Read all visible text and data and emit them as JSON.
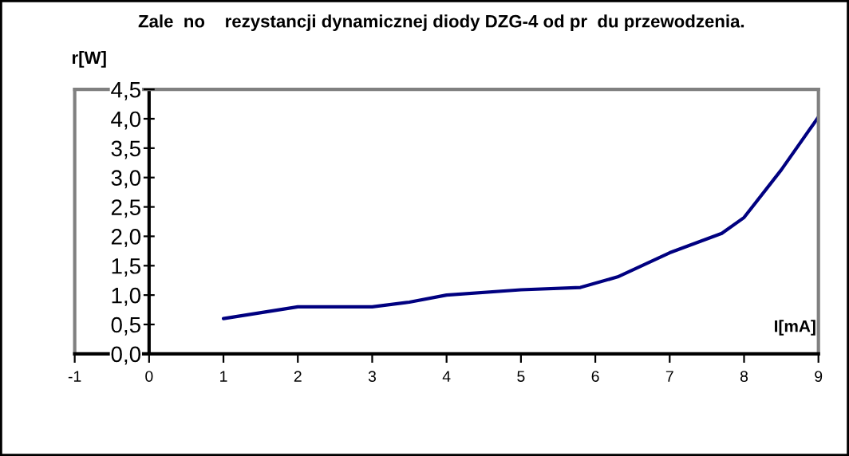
{
  "chart_data": {
    "type": "line",
    "title": "Zale  no    rezystancji dynamicznej diody DZG-4 od pr  du przewodzenia.",
    "ylabel": "r[W]",
    "xlabel": "I[mA]",
    "series": [
      {
        "color": "#000080",
        "x": [
          1,
          2,
          3,
          3.5,
          4,
          5,
          5.8,
          6.3,
          7,
          7.7,
          8,
          8.5,
          9
        ],
        "values": [
          0.6,
          0.8,
          0.8,
          0.88,
          1.0,
          1.09,
          1.13,
          1.31,
          1.72,
          2.05,
          2.32,
          3.13,
          4.03
        ]
      }
    ],
    "xlim": [
      -1,
      9
    ],
    "xticks": [
      -1,
      0,
      1,
      2,
      3,
      4,
      5,
      6,
      7,
      8,
      9
    ],
    "ylim": [
      0,
      4.5
    ],
    "yticks": [
      {
        "value": 0,
        "label": "0,0"
      },
      {
        "value": 0.5,
        "label": "0,5"
      },
      {
        "value": 1,
        "label": "1,0"
      },
      {
        "value": 1.5,
        "label": "1,5"
      },
      {
        "value": 2,
        "label": "2,0"
      },
      {
        "value": 2.5,
        "label": "2,5"
      },
      {
        "value": 3,
        "label": "3,0"
      },
      {
        "value": 3.5,
        "label": "3,5"
      },
      {
        "value": 4,
        "label": "4,0"
      },
      {
        "value": 4.5,
        "label": "4,5"
      }
    ],
    "grid": false,
    "legend": false,
    "marker": "none",
    "line_style": "solid"
  }
}
